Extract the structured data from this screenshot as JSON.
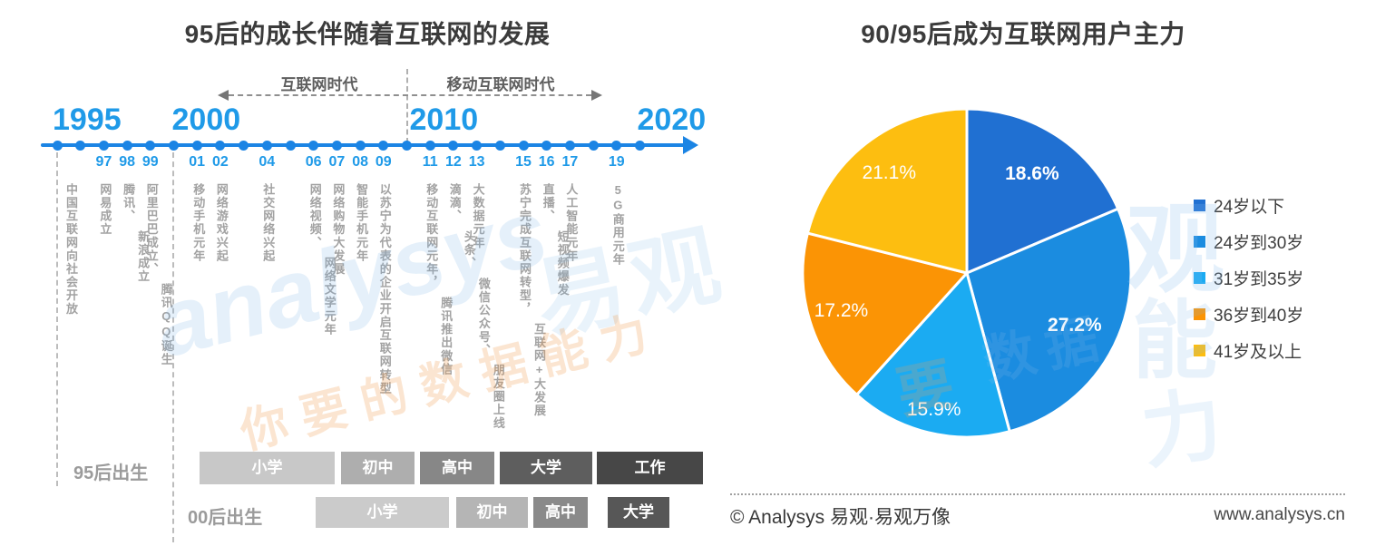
{
  "chart_data": [
    {
      "type": "timeline",
      "title": "95后的成长伴随着互联网的发展",
      "eras": [
        {
          "label": "互联网时代"
        },
        {
          "label": "移动互联网时代"
        }
      ],
      "axis": {
        "start": 1995,
        "end": 2020,
        "major_ticks": [
          "1995",
          "2000",
          "2010",
          "2020"
        ]
      },
      "events": [
        {
          "year": 1995,
          "label": "",
          "phrases": [
            "中国互联网向社会开放"
          ]
        },
        {
          "year": 1997,
          "label": "97",
          "phrases": [
            "网易成立"
          ]
        },
        {
          "year": 1998,
          "label": "98",
          "phrases": [
            "腾讯、",
            "新浪成立"
          ]
        },
        {
          "year": 1999,
          "label": "99",
          "phrases": [
            "阿里巴巴成立、",
            "腾讯QQ诞生"
          ]
        },
        {
          "year": 2001,
          "label": "01",
          "phrases": [
            "移动手机元年"
          ]
        },
        {
          "year": 2002,
          "label": "02",
          "phrases": [
            "网络游戏兴起"
          ]
        },
        {
          "year": 2004,
          "label": "04",
          "phrases": [
            "社交网络兴起"
          ]
        },
        {
          "year": 2006,
          "label": "06",
          "phrases": [
            "网络视频、",
            "网络文学元年"
          ]
        },
        {
          "year": 2007,
          "label": "07",
          "phrases": [
            "网络购物大发展"
          ]
        },
        {
          "year": 2008,
          "label": "08",
          "phrases": [
            "智能手机元年"
          ]
        },
        {
          "year": 2009,
          "label": "09",
          "phrases": [
            "以苏宁为代表的企业开启互联网转型"
          ]
        },
        {
          "year": 2011,
          "label": "11",
          "phrases": [
            "移动互联网元年，",
            "腾讯推出微信"
          ]
        },
        {
          "year": 2012,
          "label": "12",
          "phrases": [
            "滴滴、",
            "头条、",
            "微信公众号、",
            "朋友圈上线"
          ]
        },
        {
          "year": 2013,
          "label": "13",
          "phrases": [
            "大数据元年"
          ]
        },
        {
          "year": 2015,
          "label": "15",
          "phrases": [
            "苏宁完成互联网转型，",
            "互联网+大发展"
          ]
        },
        {
          "year": 2016,
          "label": "16",
          "phrases": [
            "直播、",
            "短视频爆发"
          ]
        },
        {
          "year": 2017,
          "label": "17",
          "phrases": [
            "人工智能元年"
          ]
        },
        {
          "year": 2019,
          "label": "19",
          "phrases": [
            "5G商用元年"
          ]
        }
      ],
      "birth_cohorts": [
        {
          "label": "95后出生",
          "stages": [
            {
              "name": "小学",
              "color": "#c8c8c8"
            },
            {
              "name": "初中",
              "color": "#aeaeae"
            },
            {
              "name": "高中",
              "color": "#878787"
            },
            {
              "name": "大学",
              "color": "#5e5e5e"
            },
            {
              "name": "工作",
              "color": "#474747"
            }
          ]
        },
        {
          "label": "00后出生",
          "stages": [
            {
              "name": "小学",
              "color": "#cbcbcb"
            },
            {
              "name": "初中",
              "color": "#b5b5b5"
            },
            {
              "name": "高中",
              "color": "#8a8a8a"
            },
            {
              "name": "大学",
              "color": "#575757"
            }
          ]
        }
      ],
      "accent_colors": {
        "timeline_blue": "#1b84e4",
        "year_label_blue": "#1f9ae8"
      }
    },
    {
      "type": "pie",
      "title": "90/95后成为互联网用户主力",
      "labels": [
        "24岁以下",
        "24岁到30岁",
        "31岁到35岁",
        "36岁到40岁",
        "41岁及以上"
      ],
      "values": [
        18.6,
        27.2,
        15.9,
        17.2,
        21.1
      ],
      "value_labels": [
        "18.6%",
        "27.2%",
        "15.9%",
        "17.2%",
        "21.1%"
      ],
      "colors": [
        "#2070d2",
        "#1b8ce0",
        "#1babf2",
        "#fb9405",
        "#fdbe10"
      ],
      "start_angle_deg": 0,
      "direction": "clockwise",
      "legend_position": "right"
    }
  ],
  "footer": {
    "copyright": "© Analysys 易观·易观万像",
    "url": "www.analysys.cn"
  },
  "watermarks": [
    "analysys",
    "易观",
    "你要的数据能力",
    "观",
    "能",
    "力",
    "数据",
    "要"
  ]
}
